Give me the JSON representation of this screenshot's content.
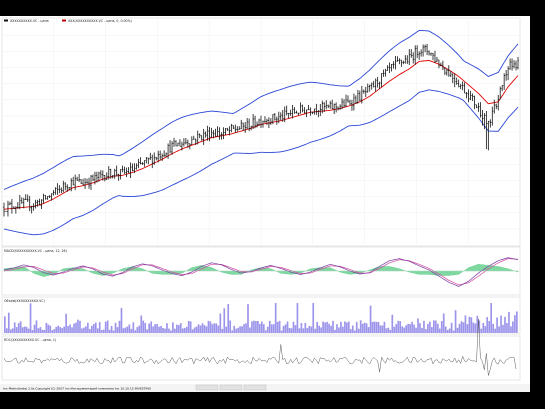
{
  "window": {
    "footer_text": "Ino Metrix(beta) 2.0s Copyright (C) 2007 Ino Инструментарий компании Ino 10.10.15 INVESTINO",
    "footer_tabs": [
      "",
      "",
      ""
    ]
  },
  "chart_data": [
    {
      "type": "line",
      "legend": {
        "placement": "top-left",
        "entries": [
          {
            "name": "XXXXXXXXXX.VC - цена",
            "color": "#111111"
          },
          {
            "name": "XXX(XXXXXXXXXX.VC - цена, 0, 0.00%)",
            "color": "#c00000"
          }
        ]
      },
      "x": [
        0,
        10,
        20,
        30,
        40,
        50,
        60,
        70,
        80,
        90,
        100,
        110,
        120,
        130,
        140,
        150,
        160,
        170,
        180,
        190,
        200,
        210,
        220,
        230,
        240,
        250,
        260,
        270,
        280,
        290,
        300,
        310,
        320,
        330,
        340,
        350,
        360,
        370,
        380,
        390,
        400,
        410,
        420,
        430,
        440,
        450,
        460,
        470,
        480,
        490,
        500,
        510,
        520
      ],
      "series": [
        {
          "name": "price",
          "color": "#111111",
          "style": "ohlc",
          "values": [
            210,
            212,
            214,
            213,
            218,
            225,
            232,
            238,
            236,
            240,
            244,
            247,
            246,
            250,
            256,
            262,
            268,
            275,
            278,
            282,
            286,
            290,
            288,
            292,
            295,
            298,
            303,
            304,
            306,
            310,
            313,
            315,
            316,
            316,
            318,
            322,
            328,
            335,
            346,
            356,
            364,
            368,
            378,
            376,
            363,
            353,
            342,
            330,
            315,
            300,
            326,
            360,
            364
          ]
        },
        {
          "name": "moving-average",
          "color": "#e00000",
          "style": "line",
          "values": [
            208,
            209,
            210,
            211,
            214,
            219,
            225,
            231,
            233,
            236,
            240,
            243,
            244,
            247,
            251,
            256,
            261,
            267,
            272,
            276,
            280,
            284,
            286,
            288,
            291,
            294,
            298,
            300,
            302,
            305,
            308,
            311,
            312,
            313,
            315,
            318,
            322,
            328,
            336,
            344,
            351,
            357,
            365,
            366,
            362,
            356,
            349,
            340,
            331,
            320,
            322,
            338,
            350
          ]
        }
      ],
      "bands": {
        "name": "bollinger",
        "color": "#2a47d6",
        "width": 28
      },
      "grid": true,
      "ticks_y": [
        "",
        "",
        "",
        "",
        "",
        "",
        "",
        "",
        "",
        "",
        "",
        "",
        "",
        ""
      ]
    },
    {
      "type": "line",
      "legend": {
        "placement": "top-left",
        "entries": [
          {
            "name": "MACD(XXXXXXXXXX.VC - цена, 12, 26)",
            "color": "#111111"
          }
        ]
      },
      "series": [
        {
          "name": "macd",
          "color": "#7a3aa3",
          "values": [
            0.2,
            0.6,
            1.2,
            0.7,
            -0.3,
            -0.8,
            -0.2,
            0.5,
            1.0,
            0.4,
            -0.6,
            -1.0,
            -0.3,
            0.8,
            1.4,
            1.0,
            0.2,
            -0.5,
            -0.9,
            -0.2,
            0.9,
            1.6,
            1.2,
            0.3,
            -0.4,
            -0.1,
            0.6,
            1.1,
            0.5,
            -0.2,
            -0.7,
            -0.2,
            0.6,
            1.3,
            0.8,
            0.0,
            -0.6,
            -0.3,
            0.9,
            2.0,
            2.4,
            1.9,
            1.0,
            0.2,
            -1.0,
            -2.2,
            -3.0,
            -2.0,
            -0.4,
            0.9,
            2.0,
            2.6,
            2.2
          ]
        },
        {
          "name": "signal",
          "color": "#d24a9c",
          "values": [
            0.0,
            0.3,
            0.8,
            0.9,
            0.2,
            -0.5,
            -0.4,
            0.2,
            0.8,
            0.6,
            -0.2,
            -0.8,
            -0.5,
            0.4,
            1.2,
            1.2,
            0.5,
            -0.2,
            -0.7,
            -0.5,
            0.4,
            1.3,
            1.3,
            0.6,
            -0.1,
            -0.2,
            0.3,
            0.9,
            0.7,
            0.1,
            -0.5,
            -0.4,
            0.3,
            1.0,
            0.9,
            0.3,
            -0.4,
            -0.4,
            0.5,
            1.6,
            2.2,
            2.0,
            1.3,
            0.5,
            -0.6,
            -1.8,
            -2.7,
            -2.3,
            -1.0,
            0.4,
            1.6,
            2.4,
            2.3
          ]
        },
        {
          "name": "histogram",
          "color": "#46c27a",
          "style": "area"
        }
      ],
      "ylim": [
        -3.5,
        3.5
      ]
    },
    {
      "type": "bar",
      "legend": {
        "placement": "top-left",
        "entries": [
          {
            "name": "Объём(XXXXXXXXXX.VC)",
            "color": "#111111"
          }
        ]
      },
      "series": [
        {
          "name": "volume",
          "color": "#9c94ea",
          "bar_count": 260,
          "min": 2,
          "max": 11,
          "spike_every": 37,
          "spike_height": 20
        }
      ],
      "ylim": [
        0,
        26
      ]
    },
    {
      "type": "line",
      "legend": {
        "placement": "top-left",
        "entries": [
          {
            "name": "ROC(XXXXXXXXXX.VC - цена, 1)",
            "color": "#111111"
          }
        ]
      },
      "series": [
        {
          "name": "oscillator",
          "color": "#5a5a5a",
          "point_count": 260,
          "baseline": 0,
          "amplitude": 3,
          "spikes": [
            [
              140,
              14
            ],
            [
              190,
              -10
            ],
            [
              240,
              12
            ],
            [
              245,
              -13
            ]
          ]
        }
      ],
      "ylim": [
        -16,
        16
      ]
    }
  ]
}
